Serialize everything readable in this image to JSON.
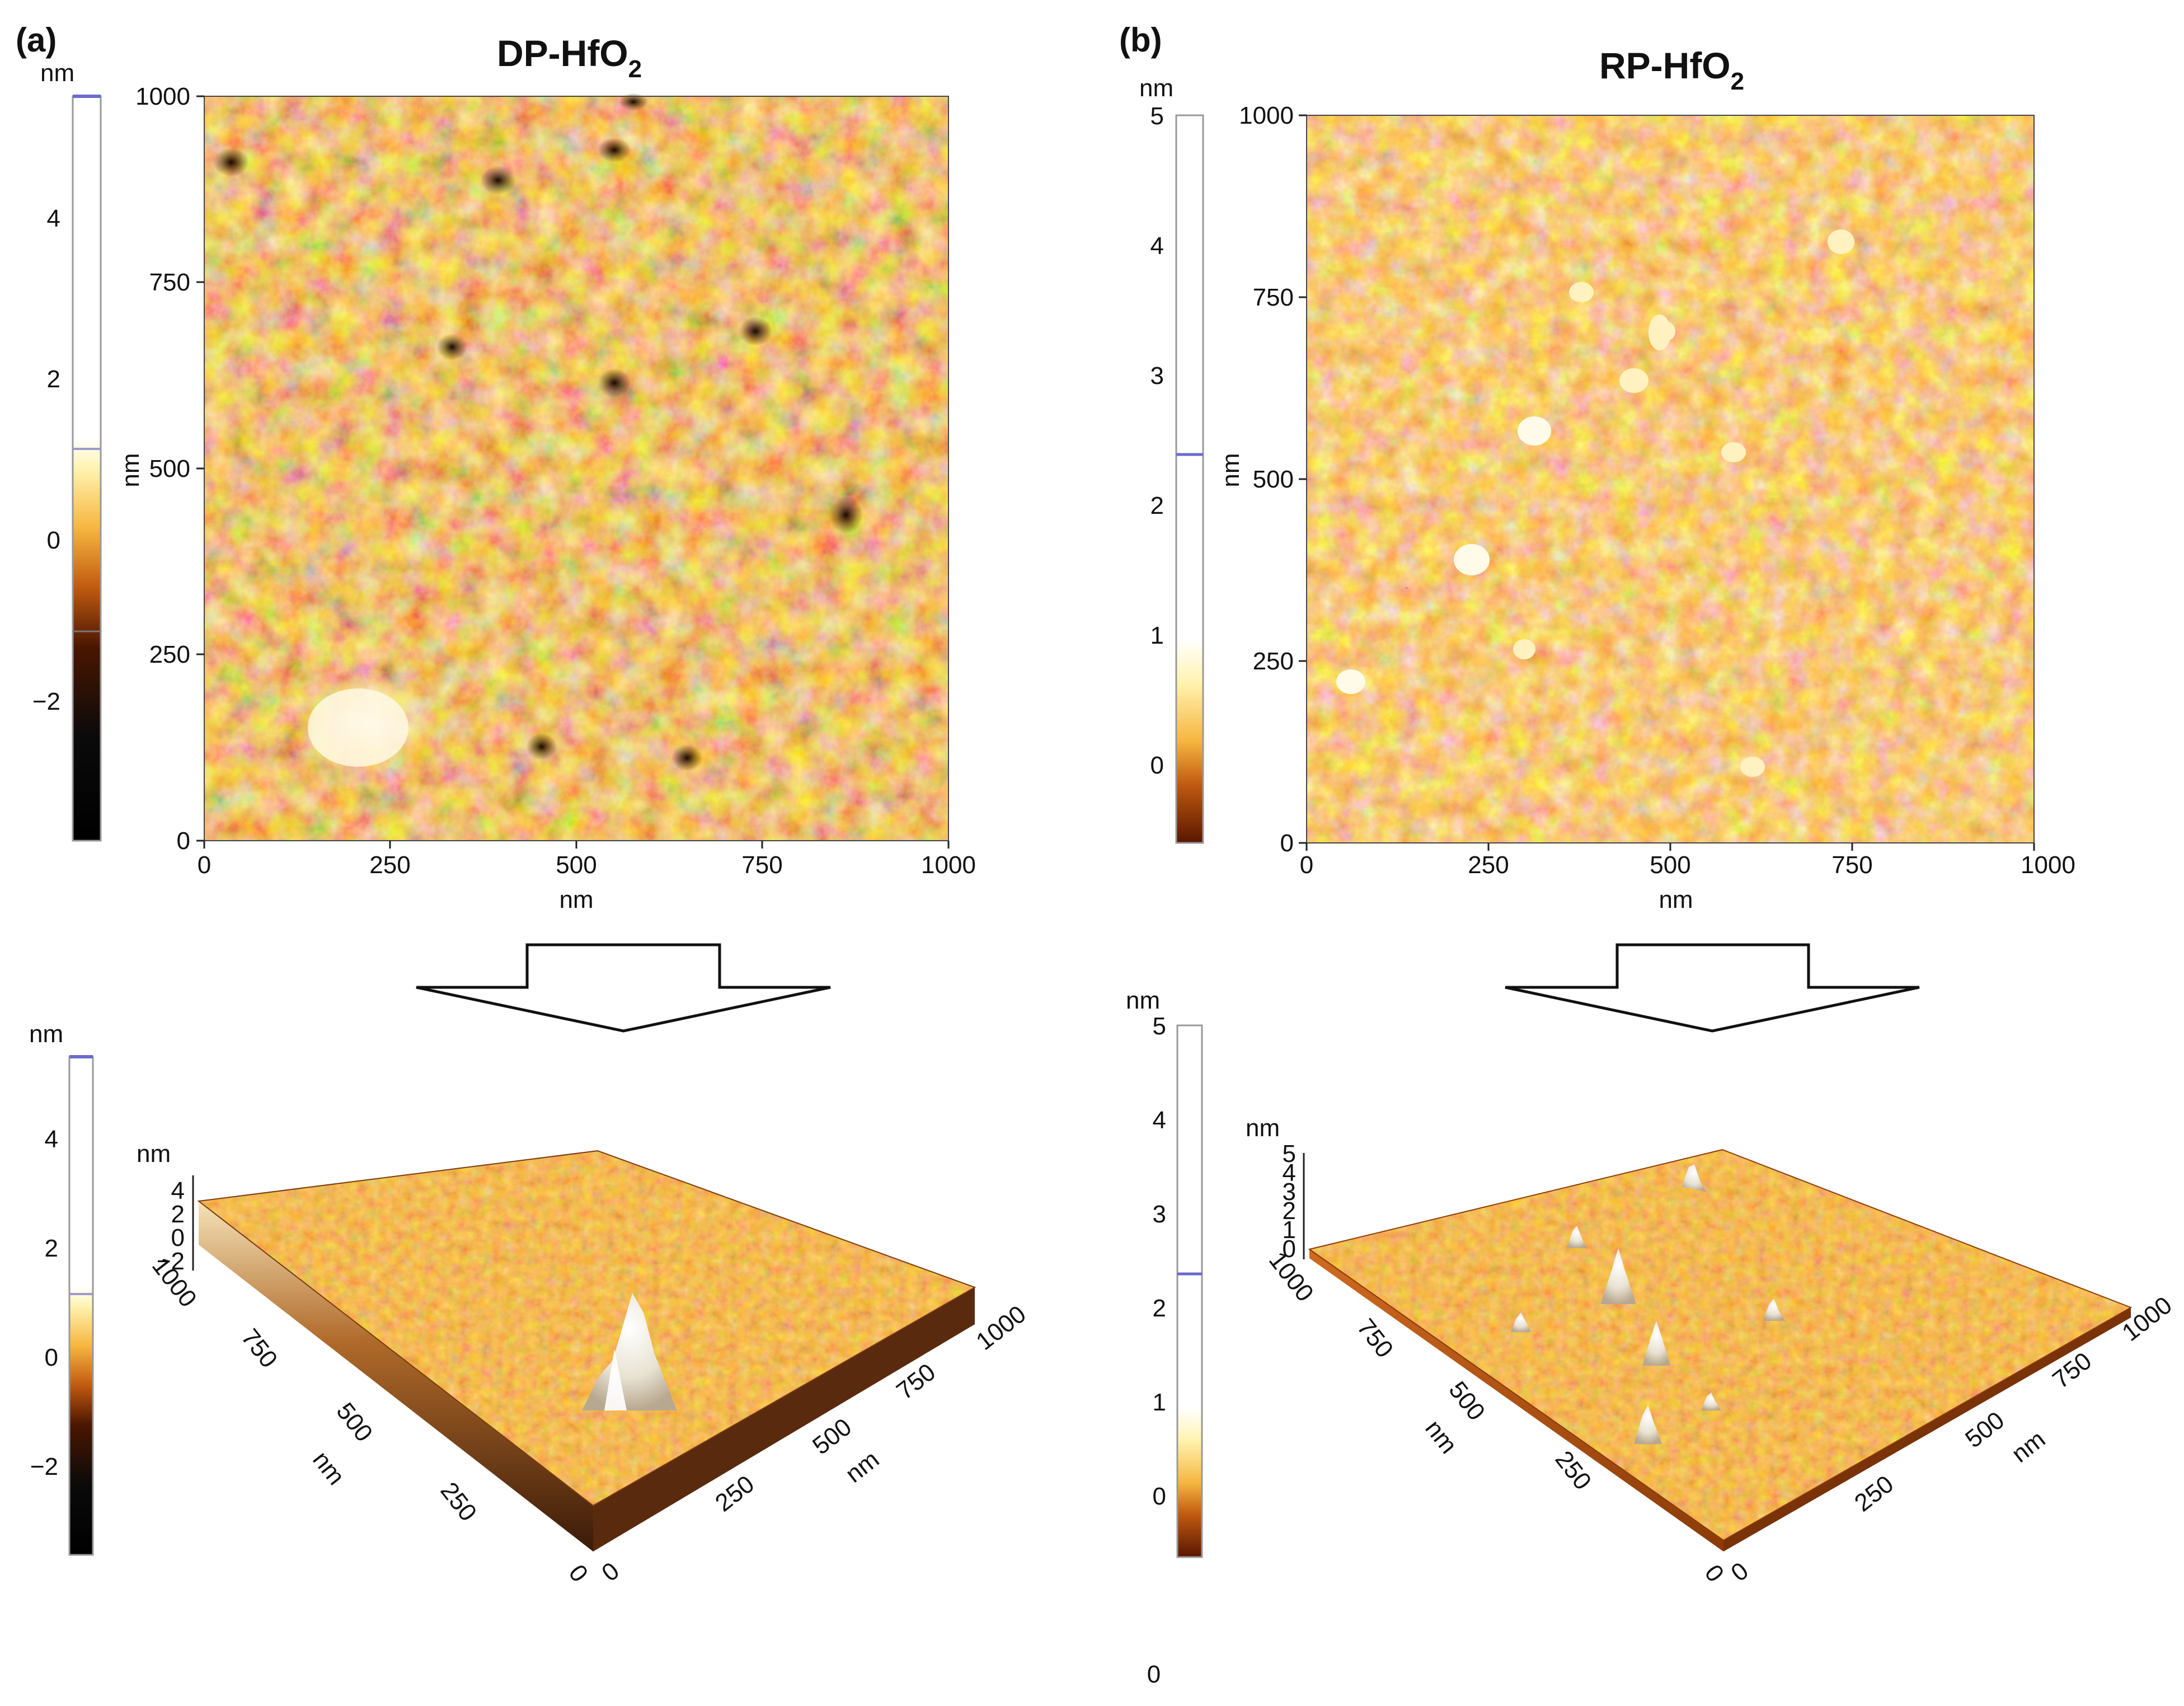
{
  "figure": {
    "panels": [
      {
        "id": "a",
        "letter": "(a)",
        "title": "DP-HfO",
        "title_sub": "2",
        "scale_unit": "nm",
        "scale_ticks": [
          "4",
          "2",
          "0",
          "−2"
        ],
        "map_x_ticks": [
          "0",
          "250",
          "500",
          "750",
          "1000"
        ],
        "map_y_ticks": [
          "0",
          "250",
          "500",
          "750",
          "1000"
        ],
        "map_x_label": "nm",
        "map_y_label": "nm",
        "bottom_scale_unit": "nm",
        "bottom_scale_ticks": [
          "4",
          "2",
          "0",
          "−2"
        ],
        "surface_z_unit": "nm",
        "surface_z_ticks": [
          "4",
          "2",
          "0",
          "−2"
        ],
        "surface_left_ticks": [
          "1000",
          "750",
          "500",
          "250",
          "0"
        ],
        "surface_right_ticks": [
          "0",
          "250",
          "500",
          "750",
          "1000"
        ],
        "surface_left_label": "nm",
        "surface_right_label": "nm"
      },
      {
        "id": "b",
        "letter": "(b)",
        "title": "RP-HfO",
        "title_sub": "2",
        "scale_unit": "nm",
        "scale_ticks": [
          "5",
          "4",
          "3",
          "2",
          "1",
          "0"
        ],
        "map_x_ticks": [
          "0",
          "250",
          "500",
          "750",
          "1000"
        ],
        "map_y_ticks": [
          "0",
          "250",
          "500",
          "750",
          "1000"
        ],
        "map_x_label": "nm",
        "map_y_label": "nm",
        "bottom_scale_unit": "nm",
        "bottom_scale_ticks": [
          "5",
          "4",
          "3",
          "2",
          "1",
          "0"
        ],
        "surface_z_unit": "nm",
        "surface_z_ticks": [
          "5",
          "4",
          "3",
          "2",
          "1",
          "0"
        ],
        "surface_left_ticks": [
          "1000",
          "750",
          "500",
          "250",
          "0"
        ],
        "surface_right_ticks": [
          "0",
          "250",
          "500",
          "750",
          "1000"
        ],
        "surface_left_label": "nm",
        "surface_right_label": "nm"
      }
    ],
    "stray_label": "0"
  },
  "colors": {
    "afm_dark": "#3a1200",
    "afm_mid": "#c8691a",
    "afm_light": "#f6c860",
    "afm_bright": "#fff6d8",
    "scale_marker": "#6a6acf"
  }
}
